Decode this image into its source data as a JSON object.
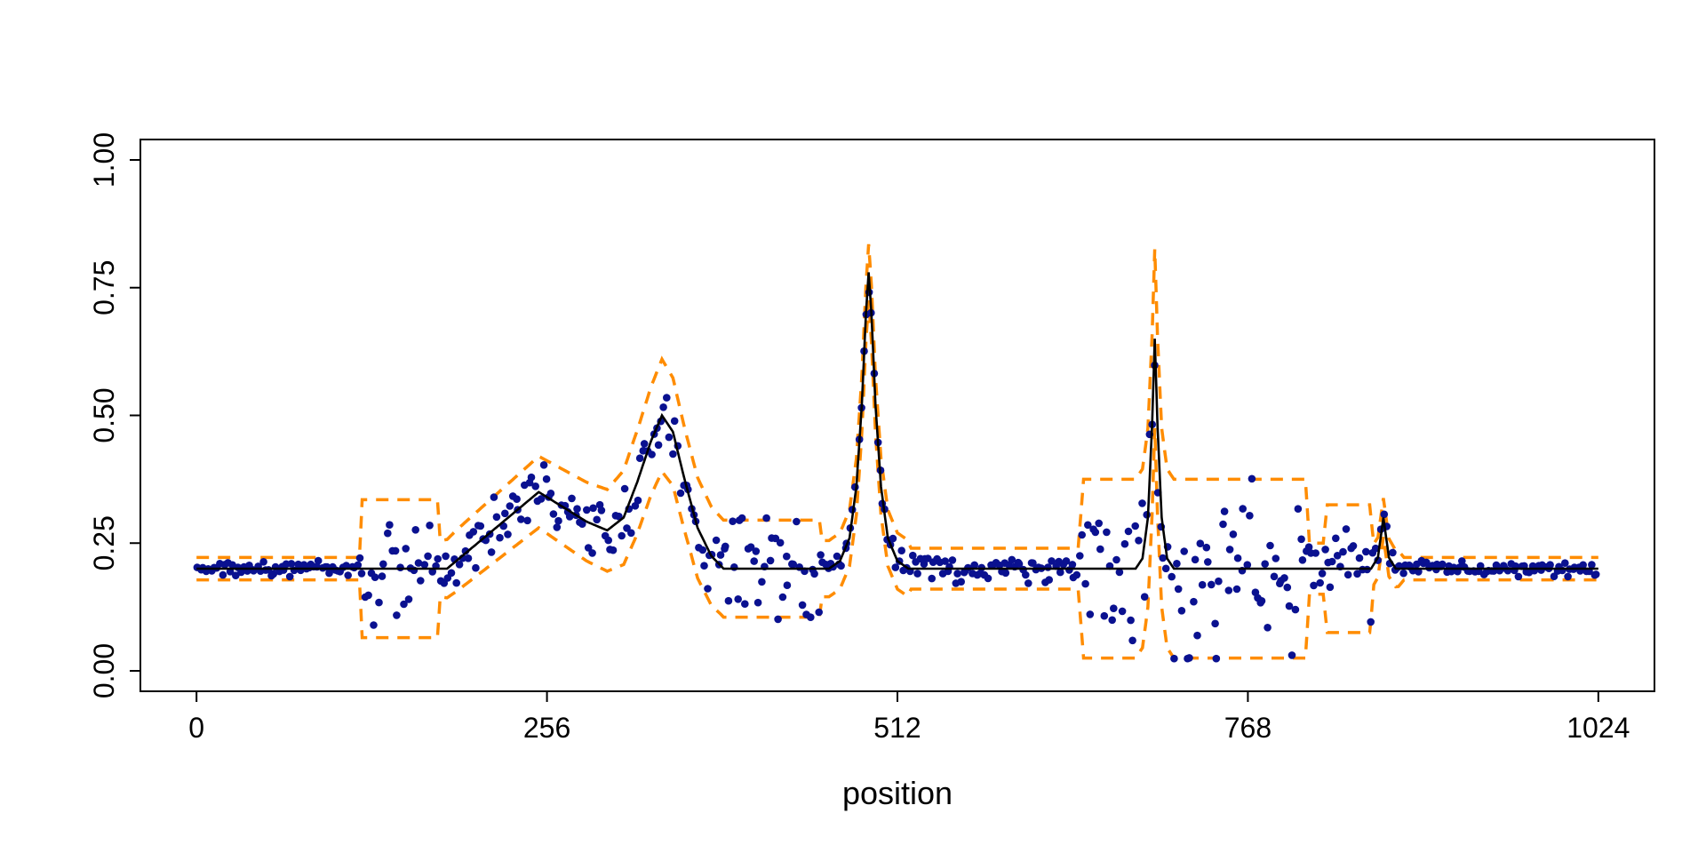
{
  "chart_data": {
    "type": "scatter",
    "title": "",
    "xlabel": "position",
    "ylabel": "",
    "x_ticks": [
      0,
      256,
      512,
      768,
      1024
    ],
    "y_ticks": [
      "0.00",
      "0.25",
      "0.50",
      "0.75",
      "1.00"
    ],
    "y_tick_values": [
      0,
      0.25,
      0.5,
      0.75,
      1.0
    ],
    "xlim": [
      -41,
      1065
    ],
    "ylim": [
      -0.04,
      1.04
    ],
    "grid": false,
    "legend": "none",
    "colors": {
      "points": "#0a1190",
      "mean_line": "#000000",
      "band": "#ff8c00",
      "axis": "#000000",
      "background": "#ffffff"
    },
    "series": [
      {
        "name": "observations",
        "style": "points"
      },
      {
        "name": "true-mean",
        "style": "solid-line"
      },
      {
        "name": "confidence-band",
        "style": "dashed-lines"
      }
    ],
    "mean_anchors": [
      [
        0,
        0.2
      ],
      [
        183,
        0.2
      ],
      [
        250,
        0.35
      ],
      [
        262,
        0.33
      ],
      [
        285,
        0.292
      ],
      [
        300,
        0.275
      ],
      [
        312,
        0.3
      ],
      [
        322,
        0.37
      ],
      [
        332,
        0.45
      ],
      [
        340,
        0.5
      ],
      [
        348,
        0.468
      ],
      [
        356,
        0.38
      ],
      [
        366,
        0.28
      ],
      [
        376,
        0.225
      ],
      [
        385,
        0.2
      ],
      [
        462,
        0.2
      ],
      [
        470,
        0.215
      ],
      [
        477,
        0.26
      ],
      [
        482,
        0.36
      ],
      [
        486,
        0.52
      ],
      [
        489,
        0.7
      ],
      [
        491,
        0.78
      ],
      [
        493,
        0.7
      ],
      [
        496,
        0.52
      ],
      [
        500,
        0.36
      ],
      [
        505,
        0.26
      ],
      [
        512,
        0.215
      ],
      [
        520,
        0.2
      ],
      [
        686,
        0.2
      ],
      [
        691,
        0.22
      ],
      [
        695,
        0.3
      ],
      [
        698,
        0.48
      ],
      [
        700,
        0.65
      ],
      [
        702,
        0.48
      ],
      [
        705,
        0.3
      ],
      [
        709,
        0.22
      ],
      [
        714,
        0.2
      ],
      [
        858,
        0.2
      ],
      [
        863,
        0.222
      ],
      [
        867,
        0.3
      ],
      [
        871,
        0.222
      ],
      [
        876,
        0.2
      ],
      [
        1024,
        0.2
      ]
    ],
    "band_margin_anchors": [
      [
        0,
        0.022
      ],
      [
        119,
        0.022
      ],
      [
        121,
        0.135
      ],
      [
        176,
        0.135
      ],
      [
        178,
        0.055
      ],
      [
        190,
        0.06
      ],
      [
        250,
        0.07
      ],
      [
        300,
        0.08
      ],
      [
        320,
        0.1
      ],
      [
        340,
        0.11
      ],
      [
        358,
        0.1
      ],
      [
        383,
        0.095
      ],
      [
        455,
        0.095
      ],
      [
        457,
        0.055
      ],
      [
        519,
        0.055
      ],
      [
        522,
        0.04
      ],
      [
        644,
        0.04
      ],
      [
        648,
        0.175
      ],
      [
        810,
        0.175
      ],
      [
        813,
        0.05
      ],
      [
        823,
        0.05
      ],
      [
        826,
        0.125
      ],
      [
        857,
        0.125
      ],
      [
        860,
        0.04
      ],
      [
        878,
        0.035
      ],
      [
        882,
        0.022
      ],
      [
        1024,
        0.022
      ]
    ],
    "noise_sd_anchors": [
      [
        0,
        0.007
      ],
      [
        119,
        0.007
      ],
      [
        122,
        0.055
      ],
      [
        175,
        0.055
      ],
      [
        178,
        0.022
      ],
      [
        190,
        0.026
      ],
      [
        250,
        0.032
      ],
      [
        300,
        0.036
      ],
      [
        340,
        0.04
      ],
      [
        385,
        0.045
      ],
      [
        455,
        0.045
      ],
      [
        458,
        0.015
      ],
      [
        520,
        0.015
      ],
      [
        524,
        0.013
      ],
      [
        644,
        0.013
      ],
      [
        649,
        0.08
      ],
      [
        810,
        0.08
      ],
      [
        814,
        0.024
      ],
      [
        824,
        0.024
      ],
      [
        827,
        0.055
      ],
      [
        857,
        0.055
      ],
      [
        861,
        0.015
      ],
      [
        880,
        0.012
      ],
      [
        884,
        0.007
      ],
      [
        1024,
        0.007
      ]
    ],
    "n_points": 520,
    "seed": 9,
    "point_radius": 4.3,
    "band_dash": [
      14,
      10
    ],
    "band_stroke_width": 3.5,
    "mean_stroke_width": 2.6,
    "axis_stroke_width": 2,
    "tick_length": 12,
    "tick_font_size": 32,
    "label_font_size": 36
  }
}
